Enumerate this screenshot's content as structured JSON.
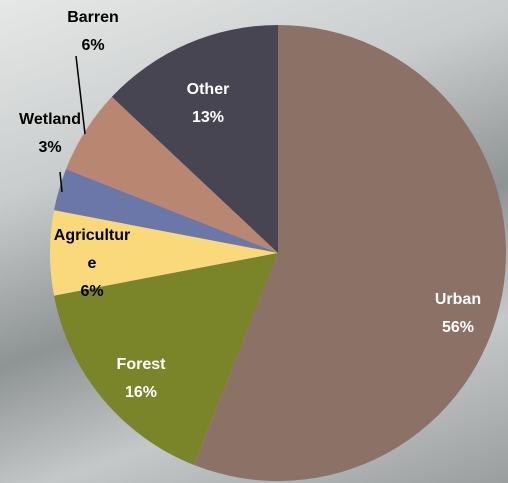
{
  "chart_data": {
    "type": "pie",
    "categories": [
      "Urban",
      "Forest",
      "Agriculture",
      "Wetland",
      "Barren",
      "Other"
    ],
    "values": [
      56,
      16,
      6,
      3,
      6,
      13
    ],
    "value_labels": [
      "56%",
      "16%",
      "6%",
      "3%",
      "6%",
      "13%"
    ],
    "colors": [
      "#8b7166",
      "#7a8429",
      "#fad97b",
      "#6b77a8",
      "#b98672",
      "#464551"
    ]
  }
}
